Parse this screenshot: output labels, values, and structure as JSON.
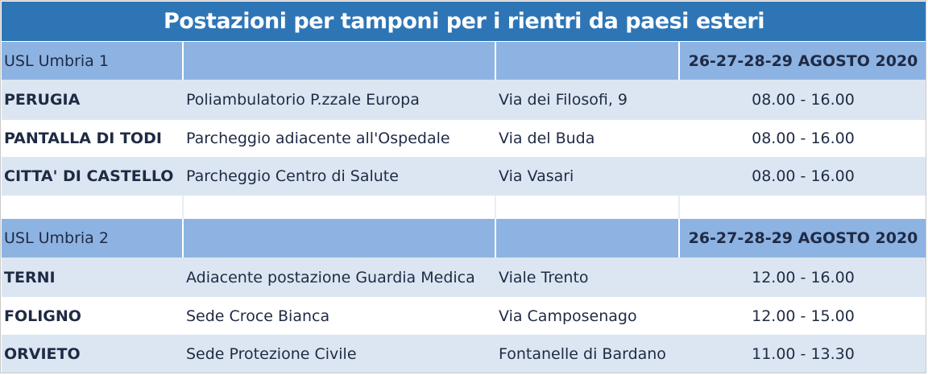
{
  "title": "Postazioni per tamponi per i rientri da paesi esteri",
  "colors": {
    "title_bg": "#2e75b6",
    "header_bg": "#8db3e2",
    "alt_row_bg": "#dce6f2",
    "text": "#1f2a44"
  },
  "sections": [
    {
      "usl": "USL Umbria 1",
      "dates": "26-27-28-29 AGOSTO 2020",
      "rows": [
        {
          "city": "PERUGIA",
          "site": "Poliambulatorio P.zzale Europa",
          "address": "Via dei Filosofi, 9",
          "hours": "08.00 - 16.00"
        },
        {
          "city": "PANTALLA DI TODI",
          "site": "Parcheggio adiacente all'Ospedale",
          "address": "Via del Buda",
          "hours": "08.00 - 16.00"
        },
        {
          "city": "CITTA' DI CASTELLO",
          "site": "Parcheggio Centro di Salute",
          "address": "Via Vasari",
          "hours": "08.00 - 16.00"
        }
      ]
    },
    {
      "usl": "USL Umbria 2",
      "dates": "26-27-28-29 AGOSTO 2020",
      "rows": [
        {
          "city": "TERNI",
          "site": "Adiacente postazione Guardia Medica",
          "address": "Viale Trento",
          "hours": "12.00 - 16.00"
        },
        {
          "city": "FOLIGNO",
          "site": "Sede Croce Bianca",
          "address": "Via Camposenago",
          "hours": "12.00 - 15.00"
        },
        {
          "city": "ORVIETO",
          "site": "Sede Protezione Civile",
          "address": "Fontanelle di Bardano",
          "hours": "11.00 - 13.30"
        }
      ]
    }
  ]
}
